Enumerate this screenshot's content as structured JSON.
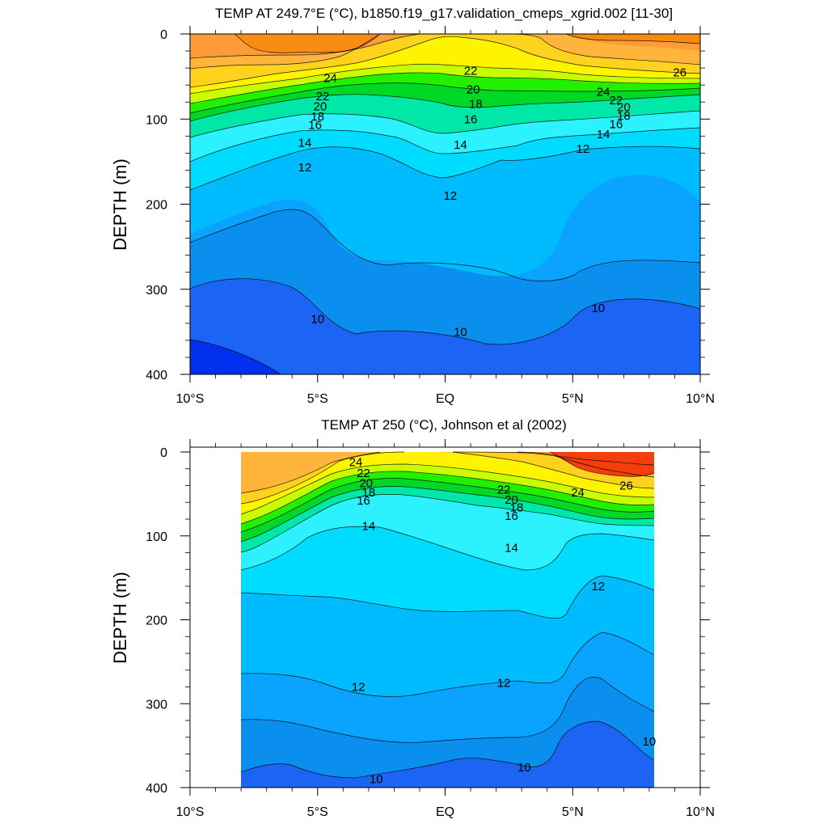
{
  "chart_data": [
    {
      "type": "contour",
      "title": "TEMP AT 249.7°E (°C), b1850.f19_g17.validation_cmeps_xgrid.002 [11-30]",
      "ylabel": "DEPTH (m)",
      "xlim": [
        -10,
        10
      ],
      "ylim": [
        400,
        0
      ],
      "x_ticks": [
        -10,
        -5,
        0,
        5,
        10
      ],
      "x_tick_labels": [
        "10°S",
        "5°S",
        "EQ",
        "5°N",
        "10°N"
      ],
      "y_ticks": [
        0,
        100,
        200,
        300,
        400
      ],
      "y_tick_labels": [
        "0",
        "100",
        "200",
        "300",
        "400"
      ],
      "data_lon_range": [
        -10,
        10
      ],
      "contour_labels": [
        {
          "text": "24",
          "lon": -4.5,
          "depth": 52
        },
        {
          "text": "22",
          "lon": -4.8,
          "depth": 73
        },
        {
          "text": "20",
          "lon": -4.9,
          "depth": 85
        },
        {
          "text": "18",
          "lon": -5.0,
          "depth": 97
        },
        {
          "text": "16",
          "lon": -5.1,
          "depth": 107
        },
        {
          "text": "14",
          "lon": -5.5,
          "depth": 128
        },
        {
          "text": "12",
          "lon": -5.5,
          "depth": 157
        },
        {
          "text": "10",
          "lon": -5.0,
          "depth": 335
        },
        {
          "text": "22",
          "lon": 1.0,
          "depth": 43
        },
        {
          "text": "20",
          "lon": 1.1,
          "depth": 65
        },
        {
          "text": "18",
          "lon": 1.2,
          "depth": 82
        },
        {
          "text": "16",
          "lon": 1.0,
          "depth": 100
        },
        {
          "text": "14",
          "lon": 0.6,
          "depth": 130
        },
        {
          "text": "12",
          "lon": 0.2,
          "depth": 190
        },
        {
          "text": "10",
          "lon": 0.6,
          "depth": 350
        },
        {
          "text": "26",
          "lon": 9.2,
          "depth": 45
        },
        {
          "text": "24",
          "lon": 6.2,
          "depth": 68
        },
        {
          "text": "22",
          "lon": 6.7,
          "depth": 78
        },
        {
          "text": "20",
          "lon": 7.0,
          "depth": 86
        },
        {
          "text": "18",
          "lon": 7.0,
          "depth": 96
        },
        {
          "text": "16",
          "lon": 6.7,
          "depth": 106
        },
        {
          "text": "14",
          "lon": 6.2,
          "depth": 118
        },
        {
          "text": "12",
          "lon": 5.4,
          "depth": 135
        },
        {
          "text": "10",
          "lon": 6.0,
          "depth": 322
        }
      ]
    },
    {
      "type": "contour",
      "title": "TEMP AT 250 (°C), Johnson et al (2002)",
      "ylabel": "DEPTH (m)",
      "xlim": [
        -10,
        10
      ],
      "ylim": [
        400,
        0
      ],
      "x_ticks": [
        -10,
        -5,
        0,
        5,
        10
      ],
      "x_tick_labels": [
        "10°S",
        "5°S",
        "EQ",
        "5°N",
        "10°N"
      ],
      "y_ticks": [
        0,
        100,
        200,
        300,
        400
      ],
      "y_tick_labels": [
        "0",
        "100",
        "200",
        "300",
        "400"
      ],
      "data_lon_range": [
        -8,
        8.2
      ],
      "contour_labels": [
        {
          "text": "24",
          "lon": -3.5,
          "depth": 12
        },
        {
          "text": "22",
          "lon": -3.2,
          "depth": 25
        },
        {
          "text": "20",
          "lon": -3.1,
          "depth": 37
        },
        {
          "text": "18",
          "lon": -3.0,
          "depth": 48
        },
        {
          "text": "16",
          "lon": -3.2,
          "depth": 58
        },
        {
          "text": "14",
          "lon": -3.0,
          "depth": 88
        },
        {
          "text": "12",
          "lon": -3.4,
          "depth": 280
        },
        {
          "text": "10",
          "lon": -2.7,
          "depth": 390
        },
        {
          "text": "22",
          "lon": 2.3,
          "depth": 45
        },
        {
          "text": "20",
          "lon": 2.6,
          "depth": 57
        },
        {
          "text": "18",
          "lon": 2.8,
          "depth": 66
        },
        {
          "text": "16",
          "lon": 2.6,
          "depth": 76
        },
        {
          "text": "14",
          "lon": 2.6,
          "depth": 114
        },
        {
          "text": "12",
          "lon": 2.3,
          "depth": 275
        },
        {
          "text": "10",
          "lon": 3.1,
          "depth": 376
        },
        {
          "text": "24",
          "lon": 5.2,
          "depth": 48
        },
        {
          "text": "26",
          "lon": 7.1,
          "depth": 40
        },
        {
          "text": "12",
          "lon": 6.0,
          "depth": 160
        },
        {
          "text": "10",
          "lon": 8.0,
          "depth": 345
        }
      ]
    }
  ]
}
